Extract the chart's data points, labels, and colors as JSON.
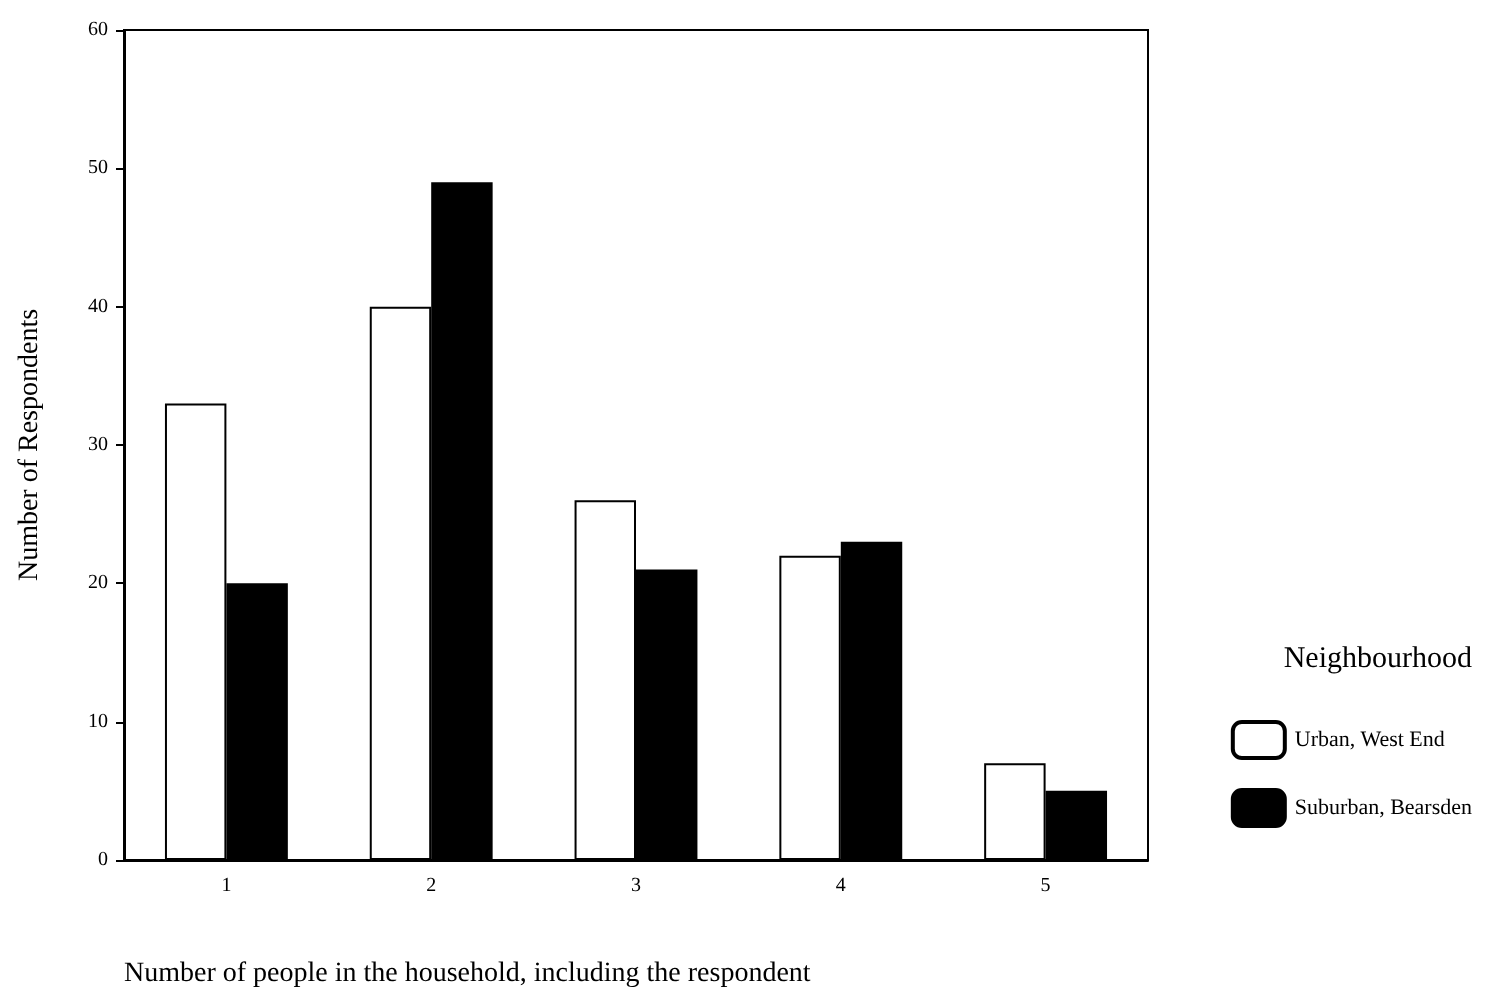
{
  "chart_data": {
    "type": "bar",
    "xlabel": "Number of people in the household, including the respondent",
    "ylabel": "Number of Respondents",
    "legend_title": "Neighbourhood",
    "categories": [
      "1",
      "2",
      "3",
      "4",
      "5"
    ],
    "series": [
      {
        "name": "Urban, West End",
        "color": "#ffffff",
        "values": [
          33,
          40,
          26,
          22,
          7
        ]
      },
      {
        "name": "Suburban, Bearsden",
        "color": "#000000",
        "values": [
          20,
          49,
          21,
          23,
          5
        ]
      }
    ],
    "ylim": [
      0,
      60
    ],
    "yticks": [
      0,
      10,
      20,
      30,
      40,
      50,
      60
    ],
    "grid": false,
    "legend": "right"
  }
}
